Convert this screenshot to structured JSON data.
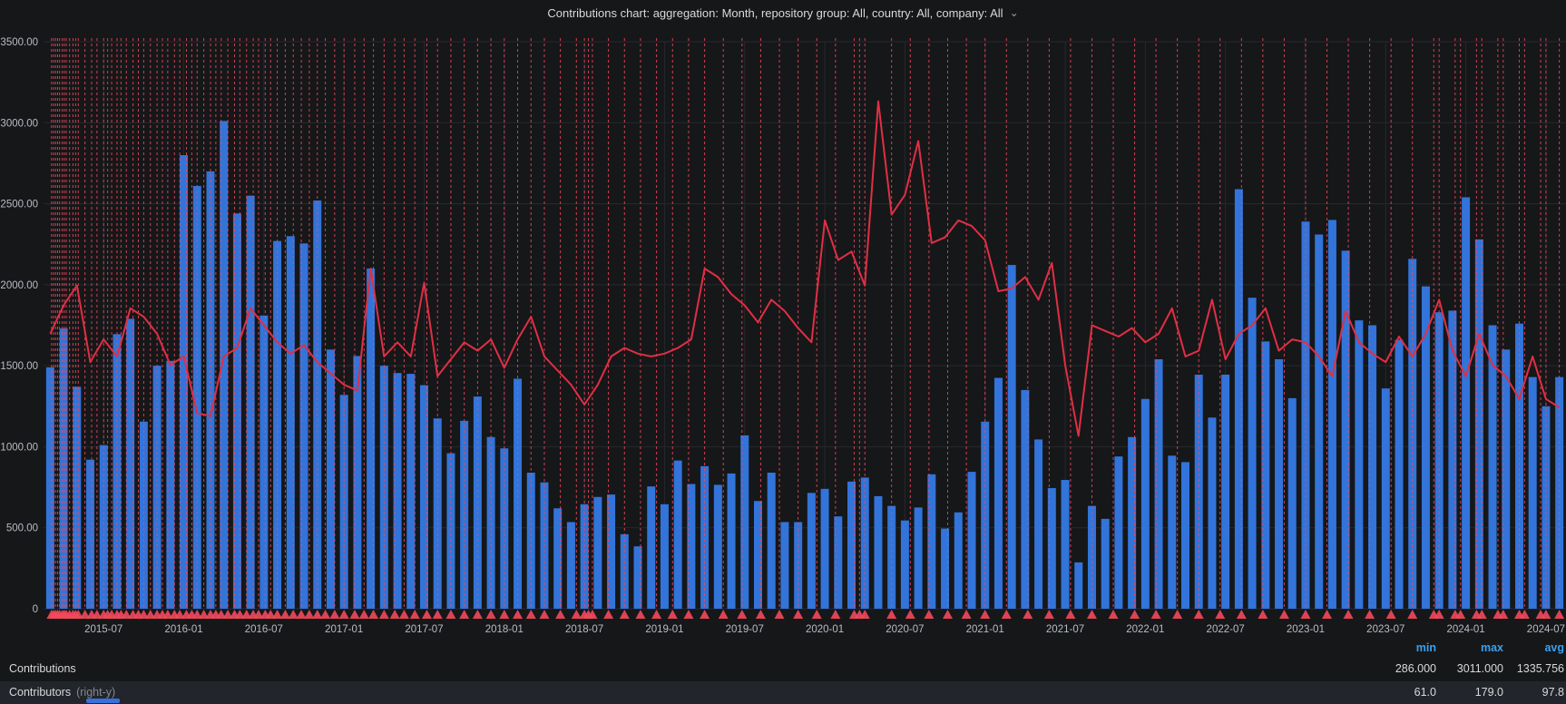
{
  "title": {
    "text": "Contributions chart: aggregation: Month, repository group: All, country: All, company: All",
    "chevron": "⌄"
  },
  "colors": {
    "background": "#161719",
    "bar": "#3274d9",
    "line": "#e02f44",
    "annotation": "#f2495c",
    "grid": "#26282d",
    "axis_text": "#b7bcc4",
    "legend_header": "#3ba0ef",
    "legend_row_alt_bg": "#22252b",
    "scroll_thumb": "#3871dc"
  },
  "chart_data": {
    "type": "bar",
    "x_start_month": "2015-03",
    "x_tick_labels": [
      "2015-07",
      "2016-01",
      "2016-07",
      "2017-01",
      "2017-07",
      "2018-01",
      "2018-07",
      "2019-01",
      "2019-07",
      "2020-01",
      "2020-07",
      "2021-01",
      "2021-07",
      "2022-01",
      "2022-07",
      "2023-01",
      "2023-07",
      "2024-01",
      "2024-07"
    ],
    "x_tick_first_index": 4,
    "x_tick_step": 6,
    "y_left": {
      "ticks": [
        "3500.00",
        "3000.00",
        "2500.00",
        "2000.00",
        "1500.00",
        "1000.00",
        "500.00",
        "0"
      ],
      "tick_values": [
        3500,
        3000,
        2500,
        2000,
        1500,
        1000,
        500,
        0
      ],
      "min": 0,
      "max": 3500
    },
    "y_right_implied_max": 200,
    "series": [
      {
        "name": "Contributions",
        "type": "bar",
        "axis": "left",
        "color": "#3274d9",
        "values": [
          1490,
          1730,
          1370,
          920,
          1010,
          1695,
          1790,
          1155,
          1500,
          1530,
          2800,
          2610,
          2700,
          3011,
          2440,
          2550,
          1810,
          2270,
          2300,
          2255,
          2520,
          1600,
          1320,
          1560,
          2100,
          1500,
          1455,
          1450,
          1380,
          1175,
          960,
          1160,
          1310,
          1060,
          990,
          1420,
          840,
          780,
          620,
          535,
          645,
          690,
          705,
          460,
          385,
          755,
          645,
          915,
          770,
          880,
          765,
          835,
          1070,
          665,
          840,
          535,
          535,
          715,
          740,
          570,
          785,
          810,
          695,
          635,
          545,
          625,
          830,
          495,
          595,
          845,
          1155,
          1425,
          2122,
          1350,
          1045,
          745,
          795,
          286,
          635,
          555,
          940,
          1060,
          1295,
          1540,
          945,
          905,
          1445,
          1180,
          1445,
          2590,
          1920,
          1650,
          1540,
          1300,
          2390,
          2310,
          2400,
          2210,
          1780,
          1750,
          1360,
          1660,
          2160,
          1990,
          1830,
          1840,
          2540,
          2280,
          1750,
          1600,
          1760,
          1430,
          1250,
          1430
        ]
      },
      {
        "name": "Contributors",
        "type": "line",
        "axis": "right",
        "color": "#e02f44",
        "values": [
          97,
          107,
          114,
          87,
          95,
          89,
          106,
          103,
          97,
          86,
          89,
          69,
          68,
          89,
          92,
          106,
          100,
          94,
          90,
          93,
          87,
          83,
          79,
          77,
          120,
          89,
          94,
          89,
          115,
          82,
          88,
          94,
          91,
          95,
          85,
          95,
          103,
          89,
          84,
          79,
          72,
          79,
          89,
          92,
          90,
          89,
          90,
          92,
          95,
          120,
          117,
          111,
          107,
          101,
          109,
          105,
          99,
          94,
          137,
          123,
          126,
          114,
          179,
          139,
          146,
          165,
          129,
          131,
          137,
          135,
          130,
          112,
          113,
          117,
          109,
          122,
          86,
          61,
          100,
          98,
          96,
          99,
          94,
          97,
          106,
          89,
          91,
          109,
          88,
          97,
          100,
          106,
          91,
          95,
          94,
          89,
          82,
          105,
          94,
          90,
          87,
          96,
          89,
          97,
          109,
          91,
          82,
          97,
          86,
          82,
          74,
          89,
          74,
          71
        ]
      }
    ],
    "annotations": {
      "color": "#f2495c",
      "positions_months": [
        0.1,
        0.25,
        0.4,
        0.55,
        0.7,
        0.9,
        1.05,
        1.2,
        1.45,
        1.7,
        1.9,
        2.1,
        2.6,
        3.1,
        3.5,
        4.0,
        4.3,
        4.6,
        5.0,
        5.3,
        5.7,
        6.2,
        6.6,
        7.0,
        7.5,
        8.0,
        8.4,
        8.8,
        9.3,
        9.7,
        10.2,
        10.6,
        11.0,
        11.5,
        12.0,
        12.4,
        12.8,
        13.3,
        13.8,
        14.2,
        14.7,
        15.2,
        15.6,
        16.1,
        16.5,
        17.0,
        17.6,
        18.2,
        18.8,
        19.4,
        20.0,
        20.6,
        21.3,
        22.0,
        22.8,
        23.5,
        24.2,
        25.0,
        25.8,
        26.5,
        27.3,
        28.2,
        29.0,
        30.0,
        31.0,
        32.0,
        33.0,
        34.0,
        35.0,
        36.0,
        37.0,
        38.2,
        39.4,
        40.0,
        40.3,
        40.6,
        41.8,
        43.0,
        44.2,
        45.4,
        46.6,
        47.8,
        49.0,
        50.4,
        51.8,
        53.2,
        54.6,
        56.0,
        57.4,
        58.8,
        60.2,
        60.6,
        61.0,
        63.0,
        64.4,
        65.8,
        67.2,
        68.6,
        70.0,
        71.6,
        73.2,
        74.8,
        76.4,
        78.0,
        79.6,
        81.2,
        82.8,
        84.4,
        86.0,
        87.6,
        89.2,
        90.8,
        92.4,
        94.0,
        95.6,
        97.2,
        98.8,
        100.4,
        102.0,
        103.6,
        104.0,
        105.2,
        105.6,
        106.8,
        107.2,
        108.4,
        108.8,
        110.0,
        110.4,
        111.6,
        112.0,
        113.0
      ]
    }
  },
  "legend": {
    "headers": [
      {
        "label": "min"
      },
      {
        "label": "max"
      },
      {
        "label": "avg"
      }
    ],
    "rows": [
      {
        "label": "Contributions",
        "qualifier": "",
        "min": "286.000",
        "max": "3011.000",
        "avg": "1335.756"
      },
      {
        "label": "Contributors",
        "qualifier": "(right-y)",
        "min": "61.0",
        "max": "179.0",
        "avg": "97.8"
      }
    ]
  }
}
